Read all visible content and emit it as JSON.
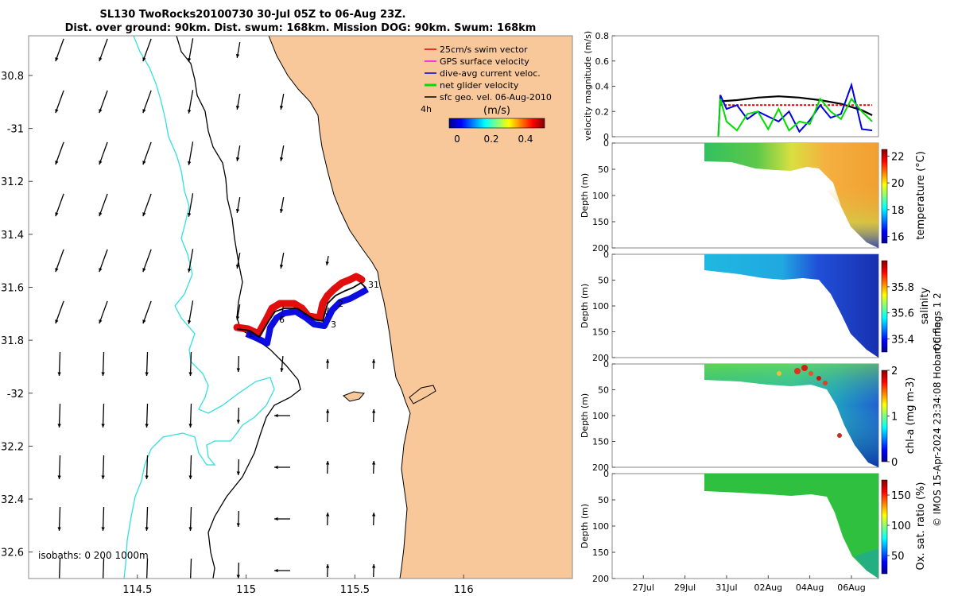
{
  "title": {
    "line1": "SL130 TwoRocks20100730 30-Jul 05Z to 06-Aug 23Z.",
    "line2": "Dist. over ground: 90km. Dist. swum: 168km. Mission DOG: 90km. Swum: 168km"
  },
  "map": {
    "x_ticks": [
      114.5,
      115,
      115.5,
      116
    ],
    "x_tick_labels": [
      "114.5",
      "115",
      "115.5",
      "116"
    ],
    "y_ticks": [
      -30.8,
      -31,
      -31.2,
      -31.4,
      -31.6,
      -31.8,
      -32,
      -32.2,
      -32.4,
      -32.6
    ],
    "y_tick_labels": [
      "30.8",
      "-31",
      "31.2",
      "31.4",
      "31.6",
      "31.8",
      "-32",
      "32.2",
      "32.4",
      "32.6"
    ],
    "xlim": [
      114.0,
      116.5
    ],
    "ylim": [
      -32.7,
      -30.65
    ],
    "legend": [
      {
        "label": "25cm/s swim vector",
        "color": "#e00000"
      },
      {
        "label": "GPS surface velocity",
        "color": "#ff00ff"
      },
      {
        "label": "dive-avg current veloc.",
        "color": "#0000e0"
      },
      {
        "label": "net glider velocity",
        "color": "#00dd00"
      },
      {
        "label": "sfc geo. vel. 06-Aug-2010",
        "color": "#000000"
      }
    ],
    "time_step_label": "4h",
    "colorbar": {
      "title": "(m/s)",
      "ticks": [
        "0",
        "0.2",
        "0.4"
      ]
    },
    "track_labels": [
      "1",
      "6",
      "3",
      "2",
      "31"
    ],
    "isobaths_label": "isobaths: 0   200  1000m",
    "colors": {
      "land": "#f8c89a",
      "isobath_200": "#000000",
      "isobath_1000": "#33e0e0",
      "ocean": "#ffffff"
    }
  },
  "chart_data": [
    {
      "type": "line",
      "title": "",
      "ylabel": "velocity magnitude (m/s)",
      "ylim": [
        0,
        0.8
      ],
      "y_ticks": [
        "0",
        "0.2",
        "0.4",
        "0.6",
        "0.8"
      ],
      "x_dates": [
        "27Jul",
        "29Jul",
        "31Jul",
        "02Aug",
        "04Aug",
        "06Aug"
      ],
      "series": [
        {
          "name": "sfc geo. vel.",
          "color": "#000000",
          "x": [
            30.7,
            31.5,
            32.5,
            33.5,
            34.5,
            35.5,
            36.5,
            37.5,
            38.0
          ],
          "values": [
            0.28,
            0.29,
            0.31,
            0.32,
            0.31,
            0.29,
            0.26,
            0.21,
            0.17
          ]
        },
        {
          "name": "swim vector",
          "color": "#e00000",
          "x": [
            30.7,
            38.0
          ],
          "values": [
            0.25,
            0.25
          ]
        },
        {
          "name": "dive-avg current veloc.",
          "color": "#0000e0",
          "x": [
            30.6,
            30.7,
            31.0,
            31.5,
            32.0,
            32.5,
            33.0,
            33.5,
            34.0,
            34.5,
            35.0,
            35.5,
            36.0,
            36.5,
            37.0,
            37.5,
            38.0
          ],
          "values": [
            0.0,
            0.33,
            0.22,
            0.25,
            0.14,
            0.2,
            0.16,
            0.12,
            0.2,
            0.04,
            0.13,
            0.25,
            0.15,
            0.18,
            0.41,
            0.06,
            0.05
          ]
        },
        {
          "name": "net glider velocity",
          "color": "#00dd00",
          "x": [
            30.6,
            30.7,
            31.0,
            31.5,
            32.0,
            32.5,
            33.0,
            33.5,
            34.0,
            34.5,
            35.0,
            35.5,
            36.0,
            36.5,
            37.0,
            37.5,
            38.0
          ],
          "values": [
            0.0,
            0.3,
            0.12,
            0.05,
            0.18,
            0.2,
            0.06,
            0.22,
            0.05,
            0.12,
            0.1,
            0.3,
            0.2,
            0.14,
            0.3,
            0.2,
            0.12
          ]
        }
      ]
    },
    {
      "type": "heatmap",
      "ylabel": "Depth (m)",
      "clabel": "temperature (°C)",
      "clim": [
        15.5,
        22.5
      ],
      "c_ticks": [
        "16",
        "18",
        "20",
        "22"
      ],
      "y_ticks": [
        "0",
        "50",
        "100",
        "150",
        "200"
      ],
      "ylim": [
        0,
        200
      ]
    },
    {
      "type": "heatmap",
      "ylabel": "Depth (m)",
      "clabel": "salinity",
      "clim": [
        35.3,
        36.0
      ],
      "c_ticks": [
        "35.4",
        "35.6",
        "35.8"
      ],
      "y_ticks": [
        "0",
        "50",
        "100",
        "150",
        "200"
      ],
      "ylim": [
        0,
        200
      ]
    },
    {
      "type": "heatmap",
      "ylabel": "Depth (m)",
      "clabel": "chl-a (mg m-3)",
      "clim": [
        0,
        2
      ],
      "c_ticks": [
        "0",
        "1",
        "2"
      ],
      "y_ticks": [
        "0",
        "50",
        "100",
        "150",
        "200"
      ],
      "ylim": [
        0,
        200
      ]
    },
    {
      "type": "heatmap",
      "ylabel": "Depth (m)",
      "clabel": "Ox. sat. ratio (%)",
      "clim": [
        20,
        175
      ],
      "c_ticks": [
        "50",
        "100",
        "150"
      ],
      "y_ticks": [
        "0",
        "50",
        "100",
        "150",
        "200"
      ],
      "ylim": [
        0,
        200
      ]
    }
  ],
  "panel_x_tick_labels": [
    "27Jul",
    "29Jul",
    "31Jul",
    "02Aug",
    "04Aug",
    "06Aug"
  ],
  "side_note": "QC flags 1 2",
  "copyright": "© IMOS 15-Apr-2024 23:34:08 Hobart time."
}
